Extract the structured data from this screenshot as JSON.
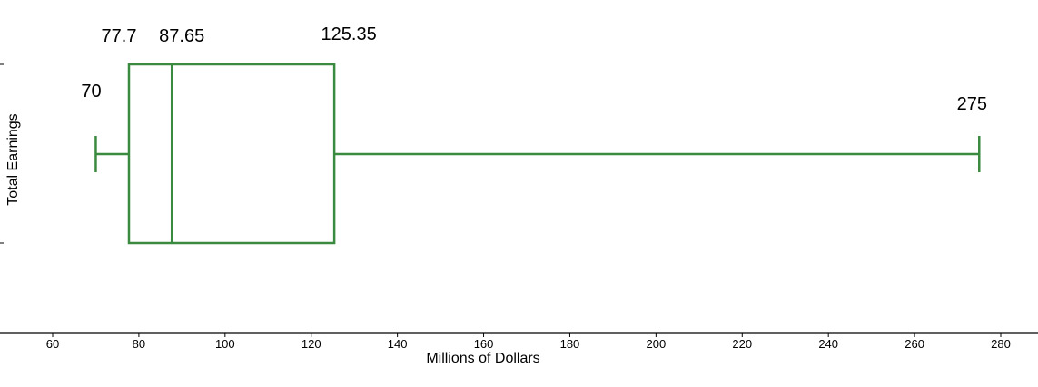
{
  "chart_data": {
    "type": "box",
    "title": "",
    "xlabel": "Millions of Dollars",
    "ylabel": "Total Earnings",
    "xlim": [
      50,
      290
    ],
    "xticks": [
      60,
      80,
      100,
      120,
      140,
      160,
      180,
      200,
      220,
      240,
      260,
      280
    ],
    "grid": false,
    "box": {
      "min": 70,
      "q1": 77.7,
      "median": 87.65,
      "q3": 125.35,
      "max": 275
    },
    "value_labels": {
      "min": "70",
      "q1": "77.7",
      "median": "87.65",
      "q3": "125.35",
      "max": "275"
    },
    "colors": {
      "box": "#3a8a3f",
      "axis": "#000000"
    }
  }
}
